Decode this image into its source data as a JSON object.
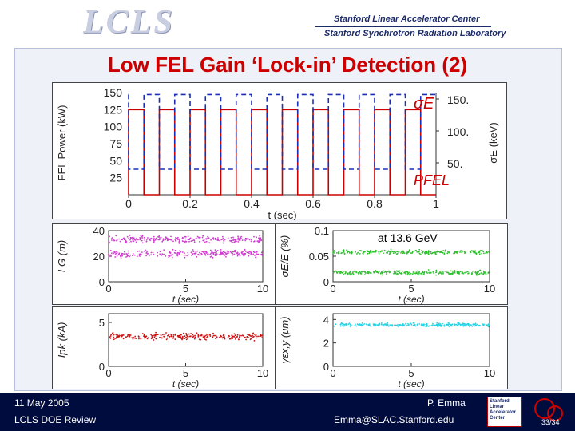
{
  "header": {
    "logo": "LCLS",
    "org_line1": "Stanford Linear Accelerator Center",
    "org_line2": "Stanford Synchrotron Radiation Laboratory"
  },
  "title": "Low FEL Gain ‘Lock-in’ Detection (2)",
  "footer": {
    "date": "11 May 2005",
    "review": "LCLS DOE Review",
    "author": "P. Emma",
    "email": "Emma@SLAC.Stanford.edu",
    "page": "33/34",
    "slac_logo_lines": [
      "Stanford",
      "Linear",
      "Accelerator",
      "Center"
    ]
  },
  "colors": {
    "title": "#cc0000",
    "footer_bg": "#000c3d",
    "power": "#cc0000",
    "sigma_e": "#1a2fb5",
    "magenta": "#d23bd2",
    "green": "#2fbf2f",
    "red": "#cc1010",
    "cyan": "#22d4e6"
  },
  "chart_data": [
    {
      "type": "line",
      "xlabel": "t (sec)",
      "ylabel": "FEL Power (kW)",
      "y2label": "σE (keV)",
      "xlim": [
        0,
        1
      ],
      "ylim": [
        0,
        150
      ],
      "xticks": [
        "0",
        "0.2",
        "0.4",
        "0.6",
        "0.8",
        "1"
      ],
      "yticks": [
        "25",
        "50",
        "75",
        "100",
        "125",
        "150"
      ],
      "y2ticks": [
        "50.",
        "100.",
        "150."
      ],
      "y2ticks_pos": [
        50,
        100,
        150
      ],
      "annotations": {
        "sigma": "σE",
        "power": "PFEL"
      },
      "y2lim": [
        0,
        160
      ],
      "period": 0.1,
      "series": [
        {
          "name": "PFEL",
          "low": 0,
          "high": 125,
          "on_fraction": 0.5
        },
        {
          "name": "σE",
          "low": 40,
          "high": 157,
          "on_fraction": 0.5
        }
      ]
    },
    {
      "type": "scatter",
      "xlabel": "t (sec)",
      "ylabel": "LG (m)",
      "xlim": [
        0,
        10
      ],
      "ylim": [
        0,
        40
      ],
      "xticks": [
        "0",
        "5",
        "10"
      ],
      "yticks": [
        "0",
        "20",
        "40"
      ],
      "series": [
        {
          "bands": [
            22,
            33
          ],
          "spread": 2.5
        }
      ]
    },
    {
      "type": "scatter",
      "xlabel": "t (sec)",
      "ylabel": "σE/E (%)",
      "xlim": [
        0,
        10
      ],
      "ylim": [
        0,
        0.1
      ],
      "xticks": [
        "0",
        "5",
        "10"
      ],
      "yticks": [
        "0",
        "0.05",
        "0.1"
      ],
      "annotation": "at 13.6 GeV",
      "series": [
        {
          "bands": [
            0.018,
            0.058
          ],
          "spread": 0.004
        }
      ]
    },
    {
      "type": "scatter",
      "xlabel": "t (sec)",
      "ylabel": "Ipk (kA)",
      "xlim": [
        0,
        10
      ],
      "ylim": [
        0,
        6
      ],
      "xticks": [
        "0",
        "5",
        "10"
      ],
      "yticks": [
        "0",
        "5"
      ],
      "series": [
        {
          "bands": [
            3.4
          ],
          "spread": 0.35
        }
      ]
    },
    {
      "type": "scatter",
      "xlabel": "t (sec)",
      "ylabel": "γεx,y (μm)",
      "xlim": [
        0,
        10
      ],
      "ylim": [
        0,
        4.5
      ],
      "xticks": [
        "0",
        "5",
        "10"
      ],
      "yticks": [
        "0",
        "2",
        "4"
      ],
      "series": [
        {
          "bands": [
            3.55
          ],
          "spread": 0.15
        }
      ]
    }
  ]
}
